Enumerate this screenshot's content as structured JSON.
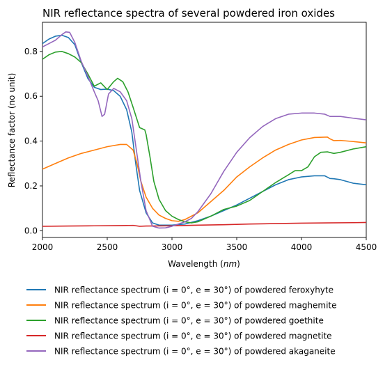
{
  "chart_data": {
    "type": "line",
    "title": "NIR reflectance spectra of several powdered iron oxides",
    "xlabel_prefix": "Wavelength (",
    "xlabel_unit": "nm",
    "xlabel_suffix": ")",
    "ylabel": "Reflectance factor (no unit)",
    "xlim": [
      2000,
      4500
    ],
    "ylim": [
      -0.03,
      0.93
    ],
    "xticks": [
      2000,
      2500,
      3000,
      3500,
      4000,
      4500
    ],
    "yticks": [
      0.0,
      0.2,
      0.4,
      0.6,
      0.8
    ],
    "ytick_labels": [
      "0.0",
      "0.2",
      "0.4",
      "0.6",
      "0.8"
    ],
    "grid": false,
    "legend_position": "below",
    "series": [
      {
        "name": "NIR reflectance spectrum (i = 0°, e = 30°) of powdered feroxyhyte",
        "color": "#1f77b4",
        "points": [
          [
            2000,
            0.835
          ],
          [
            2050,
            0.855
          ],
          [
            2100,
            0.868
          ],
          [
            2150,
            0.872
          ],
          [
            2200,
            0.862
          ],
          [
            2250,
            0.83
          ],
          [
            2300,
            0.75
          ],
          [
            2350,
            0.68
          ],
          [
            2400,
            0.64
          ],
          [
            2450,
            0.63
          ],
          [
            2500,
            0.632
          ],
          [
            2550,
            0.625
          ],
          [
            2600,
            0.6
          ],
          [
            2650,
            0.54
          ],
          [
            2690,
            0.44
          ],
          [
            2720,
            0.3
          ],
          [
            2750,
            0.18
          ],
          [
            2800,
            0.08
          ],
          [
            2850,
            0.035
          ],
          [
            2900,
            0.025
          ],
          [
            3000,
            0.025
          ],
          [
            3100,
            0.03
          ],
          [
            3200,
            0.045
          ],
          [
            3300,
            0.065
          ],
          [
            3400,
            0.09
          ],
          [
            3500,
            0.115
          ],
          [
            3600,
            0.145
          ],
          [
            3700,
            0.175
          ],
          [
            3800,
            0.205
          ],
          [
            3900,
            0.228
          ],
          [
            4000,
            0.24
          ],
          [
            4100,
            0.245
          ],
          [
            4180,
            0.245
          ],
          [
            4220,
            0.233
          ],
          [
            4250,
            0.232
          ],
          [
            4300,
            0.228
          ],
          [
            4400,
            0.212
          ],
          [
            4500,
            0.205
          ]
        ]
      },
      {
        "name": "NIR reflectance spectrum (i = 0°, e = 30°) of powdered maghemite",
        "color": "#ff7f0e",
        "points": [
          [
            2000,
            0.275
          ],
          [
            2100,
            0.3
          ],
          [
            2200,
            0.325
          ],
          [
            2300,
            0.345
          ],
          [
            2400,
            0.36
          ],
          [
            2500,
            0.375
          ],
          [
            2600,
            0.385
          ],
          [
            2650,
            0.385
          ],
          [
            2700,
            0.36
          ],
          [
            2730,
            0.3
          ],
          [
            2760,
            0.22
          ],
          [
            2800,
            0.15
          ],
          [
            2850,
            0.1
          ],
          [
            2900,
            0.07
          ],
          [
            2950,
            0.055
          ],
          [
            3000,
            0.045
          ],
          [
            3050,
            0.042
          ],
          [
            3100,
            0.05
          ],
          [
            3200,
            0.08
          ],
          [
            3300,
            0.13
          ],
          [
            3400,
            0.18
          ],
          [
            3500,
            0.24
          ],
          [
            3600,
            0.285
          ],
          [
            3700,
            0.325
          ],
          [
            3800,
            0.36
          ],
          [
            3900,
            0.385
          ],
          [
            4000,
            0.405
          ],
          [
            4100,
            0.416
          ],
          [
            4200,
            0.418
          ],
          [
            4220,
            0.41
          ],
          [
            4250,
            0.402
          ],
          [
            4300,
            0.403
          ],
          [
            4400,
            0.398
          ],
          [
            4500,
            0.392
          ]
        ]
      },
      {
        "name": "NIR reflectance spectrum (i = 0°, e = 30°) of powdered goethite",
        "color": "#2ca02c",
        "points": [
          [
            2000,
            0.765
          ],
          [
            2050,
            0.785
          ],
          [
            2100,
            0.797
          ],
          [
            2150,
            0.8
          ],
          [
            2200,
            0.79
          ],
          [
            2250,
            0.775
          ],
          [
            2300,
            0.75
          ],
          [
            2350,
            0.7
          ],
          [
            2400,
            0.645
          ],
          [
            2450,
            0.66
          ],
          [
            2500,
            0.63
          ],
          [
            2550,
            0.665
          ],
          [
            2580,
            0.68
          ],
          [
            2620,
            0.665
          ],
          [
            2660,
            0.62
          ],
          [
            2700,
            0.55
          ],
          [
            2750,
            0.46
          ],
          [
            2790,
            0.45
          ],
          [
            2800,
            0.43
          ],
          [
            2830,
            0.33
          ],
          [
            2860,
            0.22
          ],
          [
            2900,
            0.14
          ],
          [
            2950,
            0.09
          ],
          [
            3000,
            0.065
          ],
          [
            3050,
            0.05
          ],
          [
            3100,
            0.04
          ],
          [
            3150,
            0.035
          ],
          [
            3200,
            0.04
          ],
          [
            3300,
            0.065
          ],
          [
            3400,
            0.095
          ],
          [
            3500,
            0.11
          ],
          [
            3600,
            0.135
          ],
          [
            3700,
            0.175
          ],
          [
            3800,
            0.215
          ],
          [
            3900,
            0.25
          ],
          [
            3950,
            0.268
          ],
          [
            4000,
            0.268
          ],
          [
            4050,
            0.285
          ],
          [
            4100,
            0.33
          ],
          [
            4150,
            0.35
          ],
          [
            4200,
            0.352
          ],
          [
            4250,
            0.345
          ],
          [
            4300,
            0.35
          ],
          [
            4400,
            0.365
          ],
          [
            4500,
            0.375
          ]
        ]
      },
      {
        "name": "NIR reflectance spectrum (i = 0°, e = 30°) of powdered magnetite",
        "color": "#d62728",
        "points": [
          [
            2000,
            0.02
          ],
          [
            2200,
            0.021
          ],
          [
            2400,
            0.022
          ],
          [
            2600,
            0.023
          ],
          [
            2700,
            0.024
          ],
          [
            2750,
            0.02
          ],
          [
            2800,
            0.021
          ],
          [
            3000,
            0.022
          ],
          [
            3200,
            0.025
          ],
          [
            3400,
            0.027
          ],
          [
            3600,
            0.03
          ],
          [
            3800,
            0.032
          ],
          [
            4000,
            0.034
          ],
          [
            4200,
            0.035
          ],
          [
            4400,
            0.036
          ],
          [
            4500,
            0.037
          ]
        ]
      },
      {
        "name": "NIR reflectance spectrum (i = 0°, e = 30°) of powdered akaganeite",
        "color": "#9467bd",
        "points": [
          [
            2000,
            0.82
          ],
          [
            2050,
            0.835
          ],
          [
            2100,
            0.85
          ],
          [
            2150,
            0.875
          ],
          [
            2180,
            0.887
          ],
          [
            2210,
            0.885
          ],
          [
            2250,
            0.84
          ],
          [
            2300,
            0.755
          ],
          [
            2350,
            0.69
          ],
          [
            2400,
            0.62
          ],
          [
            2430,
            0.58
          ],
          [
            2460,
            0.51
          ],
          [
            2480,
            0.52
          ],
          [
            2510,
            0.61
          ],
          [
            2550,
            0.635
          ],
          [
            2600,
            0.62
          ],
          [
            2650,
            0.58
          ],
          [
            2690,
            0.5
          ],
          [
            2720,
            0.38
          ],
          [
            2760,
            0.22
          ],
          [
            2800,
            0.09
          ],
          [
            2850,
            0.02
          ],
          [
            2900,
            0.012
          ],
          [
            2950,
            0.013
          ],
          [
            3000,
            0.02
          ],
          [
            3050,
            0.03
          ],
          [
            3100,
            0.04
          ],
          [
            3150,
            0.055
          ],
          [
            3200,
            0.085
          ],
          [
            3300,
            0.165
          ],
          [
            3400,
            0.265
          ],
          [
            3500,
            0.35
          ],
          [
            3600,
            0.415
          ],
          [
            3700,
            0.465
          ],
          [
            3800,
            0.5
          ],
          [
            3900,
            0.52
          ],
          [
            4000,
            0.525
          ],
          [
            4100,
            0.525
          ],
          [
            4180,
            0.52
          ],
          [
            4220,
            0.51
          ],
          [
            4250,
            0.51
          ],
          [
            4300,
            0.51
          ],
          [
            4400,
            0.502
          ],
          [
            4500,
            0.495
          ]
        ]
      }
    ]
  }
}
